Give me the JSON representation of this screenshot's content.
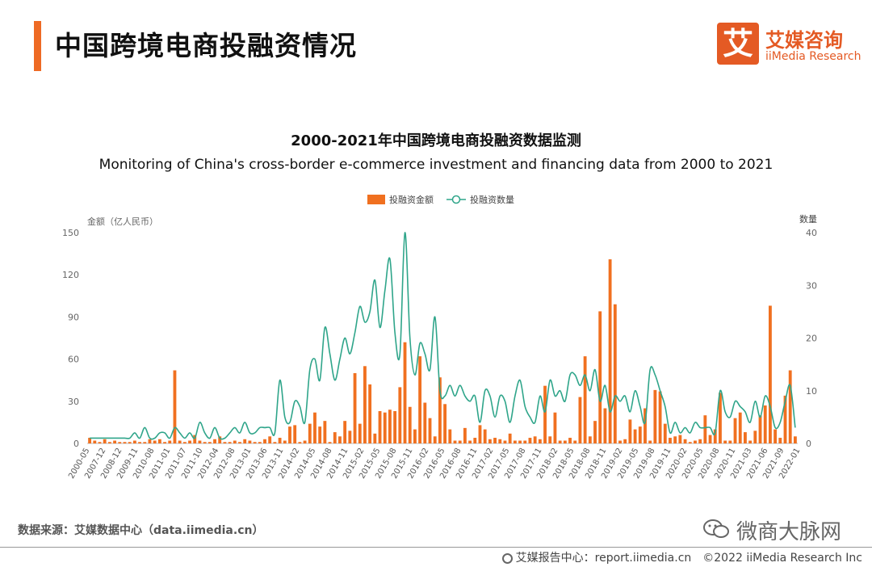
{
  "header": {
    "title": "中国跨境电商投融资情况",
    "logo_mark": "艾",
    "logo_cn": "艾媒咨询",
    "logo_en": "iiMedia Research"
  },
  "chart_data": {
    "type": "bar+line",
    "title": "2000-2021年中国跨境电商投融资数据监测",
    "subtitle": "Monitoring of China's cross-border e-commerce investment and financing data from 2000 to 2021",
    "ylabel_left": "金额（亿人民币）",
    "ylabel_right": "数量",
    "ylim_left": [
      0,
      150
    ],
    "ylim_right": [
      0,
      40
    ],
    "yticks_left": [
      "0",
      "30",
      "60",
      "90",
      "120",
      "150"
    ],
    "yticks_right": [
      "0",
      "10",
      "20",
      "30",
      "40"
    ],
    "legend_position": "top-center",
    "series": [
      {
        "name": "投融资金额",
        "type": "bar",
        "axis": "left",
        "color": "#f07020",
        "values": [
          4,
          2,
          1,
          3,
          1,
          2,
          1,
          1,
          1,
          2,
          1,
          1,
          3,
          2,
          3,
          1,
          2,
          52,
          2,
          1,
          2,
          6,
          2,
          1,
          1,
          3,
          5,
          1,
          1,
          2,
          1,
          3,
          2,
          1,
          1,
          3,
          5,
          1,
          4,
          2,
          12,
          13,
          1,
          2,
          14,
          22,
          12,
          16,
          1,
          8,
          5,
          16,
          9,
          50,
          14,
          55,
          42,
          7,
          23,
          22,
          24,
          23,
          40,
          72,
          26,
          10,
          62,
          29,
          18,
          5,
          47,
          28,
          10,
          2,
          2,
          11,
          2,
          4,
          13,
          10,
          3,
          4,
          3,
          2,
          7,
          2,
          2,
          2,
          4,
          5,
          3,
          41,
          5,
          22,
          2,
          2,
          4,
          2,
          33,
          62,
          5,
          16,
          94,
          25,
          131,
          99,
          2,
          3,
          17,
          10,
          12,
          25,
          2,
          38,
          37,
          14,
          4,
          5,
          6,
          3,
          1,
          2,
          3,
          20,
          6,
          10,
          36,
          2,
          2,
          18,
          22,
          8,
          2,
          9,
          20,
          27,
          98,
          10,
          4,
          34,
          52,
          5
        ]
      },
      {
        "name": "投融资数量",
        "type": "line",
        "axis": "right",
        "color": "#2fa58a",
        "values": [
          1,
          1,
          1,
          1,
          1,
          1,
          1,
          1,
          1,
          2,
          1,
          3,
          1,
          1,
          2,
          2,
          1,
          3,
          2,
          1,
          2,
          1,
          4,
          2,
          1,
          3,
          1,
          1,
          2,
          3,
          2,
          4,
          2,
          2,
          3,
          3,
          3,
          2,
          12,
          5,
          4,
          8,
          7,
          4,
          14,
          16,
          12,
          22,
          17,
          12,
          16,
          20,
          17,
          21,
          26,
          23,
          25,
          31,
          22,
          29,
          35,
          21,
          17,
          40,
          20,
          13,
          19,
          17,
          14,
          24,
          10,
          9,
          11,
          9,
          11,
          9,
          8,
          9,
          4,
          10,
          9,
          5,
          9,
          8,
          4,
          9,
          12,
          7,
          5,
          4,
          9,
          6,
          12,
          9,
          10,
          8,
          13,
          13,
          11,
          13,
          10,
          14,
          8,
          11,
          6,
          9,
          8,
          9,
          6,
          10,
          7,
          4,
          14,
          13,
          10,
          7,
          2,
          4,
          2,
          3,
          2,
          4,
          3,
          3,
          3,
          2,
          10,
          6,
          5,
          8,
          7,
          6,
          4,
          8,
          5,
          9,
          7,
          3,
          4,
          8,
          11,
          3
        ]
      }
    ],
    "x_tick_labels": [
      "2000-05",
      "2007-12",
      "2008-12",
      "2009-11",
      "2010-08",
      "2011-01",
      "2011-07",
      "2011-10",
      "2012-04",
      "2012-08",
      "2013-01",
      "2013-06",
      "2013-11",
      "2014-02",
      "2014-05",
      "2014-08",
      "2014-11",
      "2015-02",
      "2015-05",
      "2015-08",
      "2015-11",
      "2016-02",
      "2016-05",
      "2016-08",
      "2016-11",
      "2017-02",
      "2017-05",
      "2017-08",
      "2017-11",
      "2018-02",
      "2018-05",
      "2018-08",
      "2018-11",
      "2019-02",
      "2019-05",
      "2019-08",
      "2019-11",
      "2020-02",
      "2020-05",
      "2020-08",
      "2020-11",
      "2021-03",
      "2021-06",
      "2021-09",
      "2022-01"
    ]
  },
  "footer": {
    "source": "数据来源：艾媒数据中心（data.iimedia.cn）",
    "wechat_name": "微商大脉网",
    "report_center": "艾媒报告中心：report.iimedia.cn　©2022  iiMedia Research  Inc"
  }
}
